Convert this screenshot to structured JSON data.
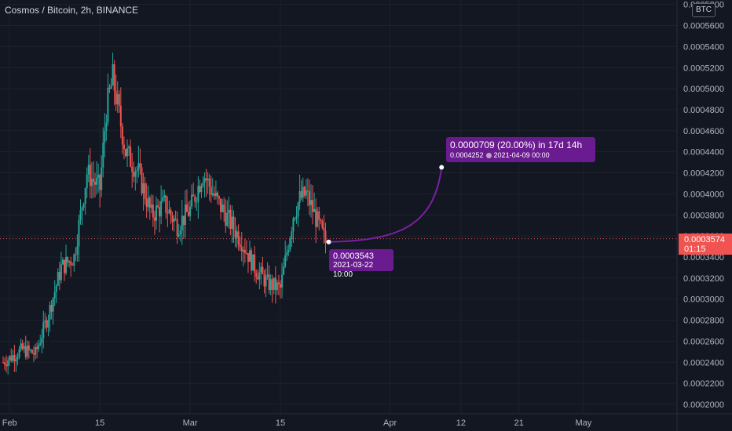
{
  "header": {
    "title": "Cosmos / Bitcoin, 2h, BINANCE",
    "currency": "BTC"
  },
  "last_price": {
    "value": "0.0003574",
    "countdown": "01:15",
    "color": "#f05350"
  },
  "projection": {
    "start_label": "0.0003543",
    "start_time": "2021-03-22 10:00",
    "change_text": "0.0000709 (20.00%) in 17d 14h",
    "target_price": "0.0004252",
    "target_time": "2021-04-09  00:00",
    "color": "#7b1fa2"
  },
  "colors": {
    "up": "#26a69a",
    "down": "#ef5350",
    "background": "#131722",
    "grid": "#1e222d",
    "axis_text": "#b2b5be"
  },
  "chart_data": {
    "type": "candlestick",
    "title": "Cosmos / Bitcoin, 2h, BINANCE",
    "x_ticks": [
      "Feb",
      "15",
      "Mar",
      "15",
      "Apr",
      "12",
      "21",
      "May"
    ],
    "y_ticks": [
      "0.0005800",
      "0.0005600",
      "0.0005400",
      "0.0005200",
      "0.0005000",
      "0.0004800",
      "0.0004600",
      "0.0004400",
      "0.0004200",
      "0.0004000",
      "0.0003800",
      "0.0003600",
      "0.0003400",
      "0.0003200",
      "0.0003000",
      "0.0002800",
      "0.0002600",
      "0.0002400",
      "0.0002200",
      "0.0002000"
    ],
    "ylim": [
      0.000197,
      0.000582
    ],
    "xlim_days": [
      "2021-01-31",
      "2021-05-16"
    ],
    "grid": true,
    "price_path": [
      [
        "2021-01-31",
        0.00024
      ],
      [
        "2021-02-03",
        0.000252
      ],
      [
        "2021-02-05",
        0.000248
      ],
      [
        "2021-02-07",
        0.000285
      ],
      [
        "2021-02-09",
        0.00033
      ],
      [
        "2021-02-11",
        0.00034
      ],
      [
        "2021-02-13",
        0.00042
      ],
      [
        "2021-02-15",
        0.000405
      ],
      [
        "2021-02-16",
        0.00048
      ],
      [
        "2021-02-17",
        0.00051
      ],
      [
        "2021-02-19",
        0.00044
      ],
      [
        "2021-02-21",
        0.00042
      ],
      [
        "2021-02-23",
        0.00038
      ],
      [
        "2021-02-25",
        0.00039
      ],
      [
        "2021-02-27",
        0.00037
      ],
      [
        "2021-03-01",
        0.000385
      ],
      [
        "2021-03-03",
        0.00042
      ],
      [
        "2021-03-05",
        0.000395
      ],
      [
        "2021-03-07",
        0.000375
      ],
      [
        "2021-03-09",
        0.000355
      ],
      [
        "2021-03-11",
        0.00033
      ],
      [
        "2021-03-13",
        0.000315
      ],
      [
        "2021-03-15",
        0.00031
      ],
      [
        "2021-03-17",
        0.00038
      ],
      [
        "2021-03-18",
        0.000395
      ],
      [
        "2021-03-19",
        0.0004
      ],
      [
        "2021-03-20",
        0.000385
      ],
      [
        "2021-03-22",
        0.000354
      ]
    ]
  }
}
